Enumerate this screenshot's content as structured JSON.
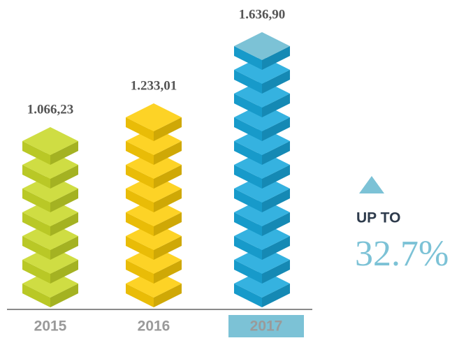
{
  "chart_data": {
    "type": "cube-stack",
    "categories": [
      "2015",
      "2016",
      "2017"
    ],
    "values": [
      1066.23,
      1233.01,
      1636.9
    ],
    "value_labels": [
      "1.066,23",
      "1.233,01",
      "1.636,90"
    ],
    "colors": [
      "#c9d92a",
      "#fdcd08",
      "#1aa8dc"
    ],
    "highlight": "2017",
    "annotation": {
      "label": "UP TO",
      "value": "32.7%"
    }
  }
}
